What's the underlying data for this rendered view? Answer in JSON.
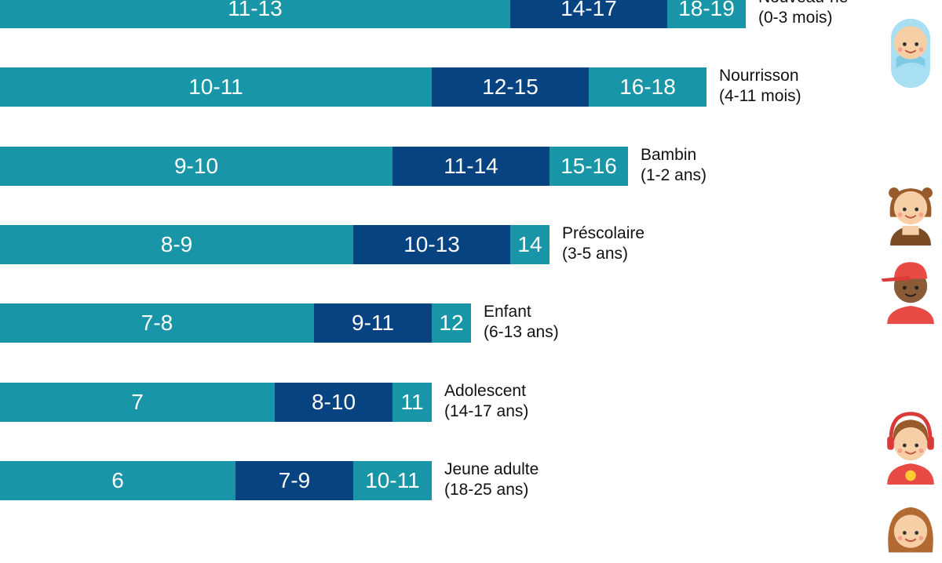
{
  "chart_data": {
    "type": "bar",
    "orientation": "horizontal",
    "stacked": true,
    "colors": {
      "light": "#1895a6",
      "dark": "#084381"
    },
    "rows": [
      {
        "name": "Nouveau-né",
        "sub": "(0-3 mois)",
        "icon": "newborn-icon",
        "segments": [
          {
            "label": "11-13",
            "tone": "light"
          },
          {
            "label": "14-17",
            "tone": "dark"
          },
          {
            "label": "18-19",
            "tone": "light"
          }
        ],
        "bounds": [
          0,
          13,
          17,
          19
        ]
      },
      {
        "name": "Nourrisson",
        "sub": "(4-11 mois)",
        "icon": "",
        "segments": [
          {
            "label": "10-11",
            "tone": "light"
          },
          {
            "label": "12-15",
            "tone": "dark"
          },
          {
            "label": "16-18",
            "tone": "light"
          }
        ],
        "bounds": [
          0,
          11,
          15,
          18
        ]
      },
      {
        "name": "Bambin",
        "sub": "(1-2 ans)",
        "icon": "toddler-icon",
        "segments": [
          {
            "label": "9-10",
            "tone": "light"
          },
          {
            "label": "11-14",
            "tone": "dark"
          },
          {
            "label": "15-16",
            "tone": "light"
          }
        ],
        "bounds": [
          0,
          10,
          14,
          16
        ]
      },
      {
        "name": "Préscolaire",
        "sub": "(3-5 ans)",
        "icon": "child-cap-icon",
        "segments": [
          {
            "label": "8-9",
            "tone": "light"
          },
          {
            "label": "10-13",
            "tone": "dark"
          },
          {
            "label": "14",
            "tone": "light"
          }
        ],
        "bounds": [
          0,
          9,
          13,
          14
        ]
      },
      {
        "name": "Enfant",
        "sub": "(6-13 ans)",
        "icon": "",
        "segments": [
          {
            "label": "7-8",
            "tone": "light"
          },
          {
            "label": "9-11",
            "tone": "dark"
          },
          {
            "label": "12",
            "tone": "light"
          }
        ],
        "bounds": [
          0,
          8,
          11,
          12
        ]
      },
      {
        "name": "Adolescent",
        "sub": "(14-17 ans)",
        "icon": "teen-headphones-icon",
        "segments": [
          {
            "label": "7",
            "tone": "light"
          },
          {
            "label": "8-10",
            "tone": "dark"
          },
          {
            "label": "11",
            "tone": "light"
          }
        ],
        "bounds": [
          0,
          7,
          10,
          11
        ]
      },
      {
        "name": "Jeune adulte",
        "sub": "(18-25 ans)",
        "icon": "young-adult-icon",
        "segments": [
          {
            "label": "6",
            "tone": "light"
          },
          {
            "label": "7-9",
            "tone": "dark"
          },
          {
            "label": "10-11",
            "tone": "light"
          }
        ],
        "bounds": [
          0,
          6,
          9,
          11
        ]
      }
    ]
  }
}
